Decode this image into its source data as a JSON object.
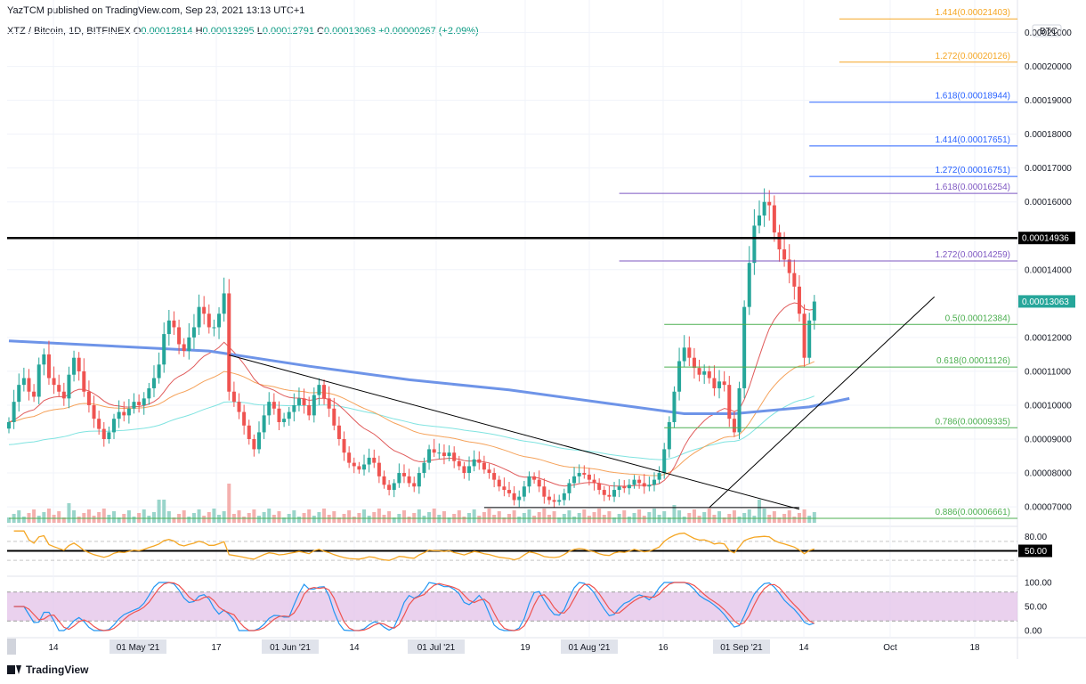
{
  "header": {
    "publisher": "YazTCM published on TradingView.com, Sep 23, 2021 13:13 UTC+1"
  },
  "symbol": {
    "title": "XTZ / Bitcoin, 1D, BITFINEX",
    "o_label": "O",
    "o_value": "0.00012814",
    "h_label": "H",
    "h_value": "0.00013295",
    "l_label": "L",
    "l_value": "0.00012791",
    "c_label": "C",
    "c_value": "0.00013063",
    "change": "+0.00000267 (+2.09%)"
  },
  "footer": {
    "brand": "TradingView"
  },
  "colors": {
    "up": "#26a69a",
    "down": "#ef5350",
    "ema200": "#6e94e8",
    "ema20": "#e05a5a",
    "ema50": "#f5a25a",
    "ema100": "#7fe3e0",
    "fib_orange": "#f5a623",
    "fib_blue": "#2962ff",
    "fib_purple": "#7e57c2",
    "fib_green": "#4caf50",
    "resistance": "#000000",
    "rsi": "#f5a623",
    "stoch_k": "#2196f3",
    "stoch_d": "#ef5350",
    "stoch_band": "#e1bee7",
    "price_tag": "#26a69a"
  },
  "chart_data": [
    {
      "type": "candlestick",
      "title": "",
      "x_axis_labels": [
        "14",
        "01 May '21",
        "17",
        "01 Jun '21",
        "14",
        "01 Jul '21",
        "19",
        "01 Aug '21",
        "16",
        "01 Sep '21",
        "14",
        "Oct",
        "18"
      ],
      "y_axis_label": "BTC",
      "y_ticks": [
        "0.00021000",
        "0.00020000",
        "0.00019000",
        "0.00018000",
        "0.00017000",
        "0.00016000",
        "0.00014000",
        "0.00012000",
        "0.00011000",
        "0.00010000",
        "0.00009000",
        "0.00008000",
        "0.00007000"
      ],
      "ylim": [
        6.45e-05,
        0.0002175
      ],
      "current_price": "0.00013063",
      "resistance_level": "0.00014936",
      "resistance_value": 0.00014936,
      "fib_levels": [
        {
          "ratio": "1.414",
          "value": "0.00021403",
          "v": 0.00021403,
          "color": "fib_orange",
          "x_start_day": 166
        },
        {
          "ratio": "1.272",
          "value": "0.00020126",
          "v": 0.00020126,
          "color": "fib_orange",
          "x_start_day": 166
        },
        {
          "ratio": "1.618",
          "value": "0.00018944",
          "v": 0.00018944,
          "color": "fib_blue",
          "x_start_day": 160
        },
        {
          "ratio": "1.414",
          "value": "0.00017651",
          "v": 0.00017651,
          "color": "fib_blue",
          "x_start_day": 160
        },
        {
          "ratio": "1.272",
          "value": "0.00016751",
          "v": 0.00016751,
          "color": "fib_blue",
          "x_start_day": 160
        },
        {
          "ratio": "1.618",
          "value": "0.00016254",
          "v": 0.00016254,
          "color": "fib_purple",
          "x_start_day": 122
        },
        {
          "ratio": "1.272",
          "value": "0.00014259",
          "v": 0.00014259,
          "color": "fib_purple",
          "x_start_day": 122
        },
        {
          "ratio": "0.5",
          "value": "0.00012384",
          "v": 0.00012384,
          "color": "fib_green",
          "x_start_day": 131
        },
        {
          "ratio": "0.618",
          "value": "0.00011126",
          "v": 0.00011126,
          "color": "fib_green",
          "x_start_day": 131
        },
        {
          "ratio": "0.786",
          "value": "0.00009335",
          "v": 9.335e-05,
          "color": "fib_green",
          "x_start_day": 131
        },
        {
          "ratio": "0.886",
          "value": "0.00006661",
          "v": 6.661e-05,
          "color": "fib_green",
          "x_start_day": 0
        }
      ],
      "trendlines": [
        {
          "name": "descending-trendline",
          "from": [
            44,
            0.0001148
          ],
          "to": [
            158,
            6.93e-05
          ]
        },
        {
          "name": "ascending-trendline",
          "from": [
            140,
            6.98e-05
          ],
          "to": [
            185,
            0.000132
          ]
        },
        {
          "name": "support-horizontal",
          "from": [
            95,
            6.98e-05
          ],
          "to": [
            158,
            6.98e-05
          ]
        }
      ],
      "series_close_approx": [
        9.5e-05,
        0.000101,
        0.000106,
        0.000108,
        0.000104,
        0.0001025,
        0.000112,
        0.000115,
        0.000108,
        0.000106,
        0.000104,
        0.000102,
        0.000109,
        0.000114,
        0.00011,
        0.000104,
        0.0001,
        9.6e-05,
        9.3e-05,
        9e-05,
        9.2e-05,
        9.6e-05,
        9.8e-05,
        9.7e-05,
        9.9e-05,
        0.000101,
        0.0001,
        0.000102,
        0.000105,
        0.000108,
        0.000112,
        0.000121,
        0.000125,
        0.000123,
        0.000118,
        0.000116,
        0.00012,
        0.000123,
        0.000129,
        0.000127,
        0.000123,
        0.000123,
        0.000127,
        0.000133,
        0.000104,
        0.000101,
        9.8e-05,
        9.4e-05,
        9e-05,
        8.7e-05,
        9.2e-05,
        9.7e-05,
        0.000101,
        9.9e-05,
        9.5e-05,
        9.6e-05,
        9.8e-05,
        0.0001,
        0.000102,
        0.0001,
        9.7e-05,
        0.000103,
        0.000106,
        0.000102,
        9.9e-05,
        9.4e-05,
        9e-05,
        8.6e-05,
        8.3e-05,
        8.2e-05,
        8.1e-05,
        8.25e-05,
        8.45e-05,
        8.3e-05,
        7.9e-05,
        7.65e-05,
        7.5e-05,
        7.7e-05,
        8e-05,
        7.9e-05,
        7.7e-05,
        7.6e-05,
        8e-05,
        8.3e-05,
        8.7e-05,
        8.6e-05,
        8.6e-05,
        8.5e-05,
        8.6e-05,
        8.35e-05,
        8.2e-05,
        8e-05,
        8.2e-05,
        8.4e-05,
        8.3e-05,
        8.1e-05,
        8e-05,
        7.8e-05,
        7.6e-05,
        7.5e-05,
        7.4e-05,
        7.2e-05,
        7.3e-05,
        7.6e-05,
        7.9e-05,
        7.8e-05,
        7.6e-05,
        7.3e-05,
        7.2e-05,
        7.15e-05,
        7.2e-05,
        7.4e-05,
        7.7e-05,
        7.9e-05,
        8e-05,
        7.95e-05,
        7.8e-05,
        7.7e-05,
        7.5e-05,
        7.35e-05,
        7.3e-05,
        7.5e-05,
        7.6e-05,
        7.55e-05,
        7.65e-05,
        7.8e-05,
        7.7e-05,
        7.6e-05,
        7.65e-05,
        7.8e-05,
        8e-05,
        8.7e-05,
        9.5e-05,
        0.000104,
        0.000113,
        0.000117,
        0.000114,
        0.000111,
        0.000109,
        0.00011,
        0.000108,
        0.000105,
        0.000107,
        0.000106,
        9.6e-05,
        9.2e-05,
        0.000105,
        0.000129,
        0.000142,
        0.000153,
        0.000156,
        0.00016,
        0.000159,
        0.000151,
        0.000146,
        0.000143,
        0.000139,
        0.000135,
        0.000127,
        0.000114,
        0.000125,
        0.0001306
      ],
      "ema200_approx": [
        [
          0,
          0.000119
        ],
        [
          20,
          0.0001175
        ],
        [
          40,
          0.000116
        ],
        [
          60,
          0.0001115
        ],
        [
          80,
          0.0001075
        ],
        [
          100,
          0.0001045
        ],
        [
          120,
          0.0001005
        ],
        [
          135,
          9.75e-05
        ],
        [
          145,
          9.75e-05
        ],
        [
          160,
          9.95e-05
        ],
        [
          168,
          0.000102
        ]
      ],
      "indicators": {
        "rsi": {
          "ticks": [
            "80.00",
            "50.00"
          ],
          "current": "50.00",
          "range": [
            0,
            100
          ]
        },
        "stoch_rsi": {
          "ticks": [
            "100.00",
            "50.00",
            "0.00"
          ],
          "range": [
            0,
            100
          ],
          "band": [
            20,
            80
          ]
        }
      }
    }
  ]
}
